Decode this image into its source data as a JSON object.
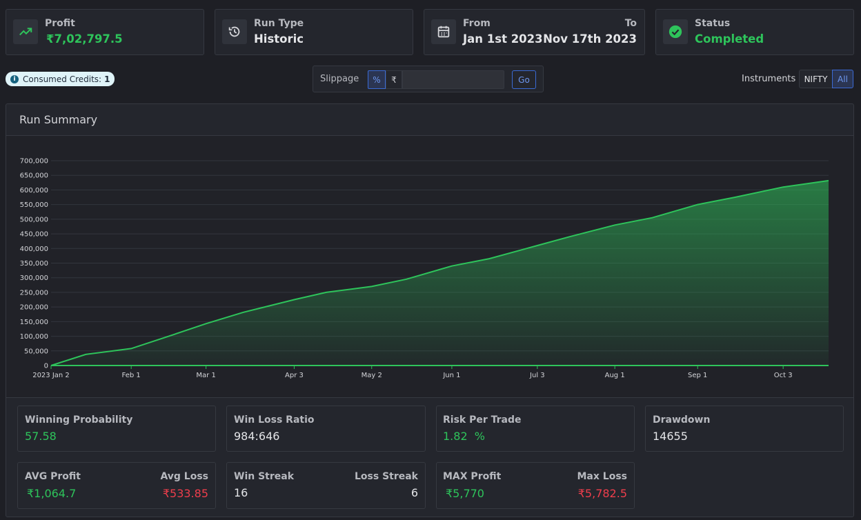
{
  "cards": {
    "profit": {
      "label": "Profit",
      "value": "₹7,02,797.5"
    },
    "run_type": {
      "label": "Run Type",
      "value": "Historic"
    },
    "dates": {
      "from_label": "From",
      "from_value": "Jan 1st 2023",
      "to_label": "To",
      "to_value": "Nov 17th 2023"
    },
    "status": {
      "label": "Status",
      "value": "Completed"
    }
  },
  "credits": {
    "label": "Consumed Credits:",
    "value": "1"
  },
  "slippage": {
    "label": "Slippage",
    "percent_btn": "%",
    "rupee_btn": "₹",
    "input_value": "",
    "go_label": "Go"
  },
  "instruments": {
    "label": "Instruments",
    "options": [
      "NIFTY",
      "All"
    ],
    "selected": "All"
  },
  "summary": {
    "title": "Run Summary"
  },
  "chart_data": {
    "type": "area",
    "title": "",
    "xlabel": "",
    "ylabel": "",
    "x_ticks": [
      "2023 Jan 2",
      "Feb 1",
      "Mar 1",
      "Apr 3",
      "May 2",
      "Jun 1",
      "Jul 3",
      "Aug 1",
      "Sep 1",
      "Oct 3"
    ],
    "y_ticks": [
      "0",
      "50,000",
      "100,000",
      "150,000",
      "200,000",
      "250,000",
      "300,000",
      "350,000",
      "400,000",
      "450,000",
      "500,000",
      "550,000",
      "600,000",
      "650,000",
      "700,000"
    ],
    "ylim": [
      0,
      700000
    ],
    "x_range": [
      "2023-01-02",
      "2023-10-20"
    ],
    "grid": true,
    "color": "#2ec45b",
    "x": [
      "2023-01-02",
      "2023-01-15",
      "2023-02-01",
      "2023-02-15",
      "2023-03-01",
      "2023-03-15",
      "2023-04-03",
      "2023-04-15",
      "2023-05-02",
      "2023-05-15",
      "2023-06-01",
      "2023-06-15",
      "2023-07-03",
      "2023-07-15",
      "2023-08-01",
      "2023-08-15",
      "2023-09-01",
      "2023-09-15",
      "2023-10-03",
      "2023-10-20"
    ],
    "values": [
      0,
      38000,
      58000,
      100000,
      143000,
      182000,
      225000,
      250000,
      270000,
      295000,
      340000,
      365000,
      410000,
      440000,
      480000,
      505000,
      550000,
      575000,
      610000,
      632000
    ]
  },
  "stats": {
    "winning_probability": {
      "label": "Winning Probability",
      "value": "57.58"
    },
    "win_loss_ratio": {
      "label": "Win Loss Ratio",
      "value": "984:646"
    },
    "risk_per_trade": {
      "label": "Risk Per Trade",
      "value": "1.82  %"
    },
    "drawdown": {
      "label": "Drawdown",
      "value": "14655"
    },
    "avg": {
      "profit_label": "AVG Profit",
      "profit_value": "₹1,064.7",
      "loss_label": "Avg Loss",
      "loss_value": "₹533.85"
    },
    "streak": {
      "win_label": "Win Streak",
      "win_value": "16",
      "loss_label": "Loss Streak",
      "loss_value": "6"
    },
    "max": {
      "profit_label": "MAX Profit",
      "profit_value": "₹5,770",
      "loss_label": "Max Loss",
      "loss_value": "₹5,782.5"
    }
  }
}
